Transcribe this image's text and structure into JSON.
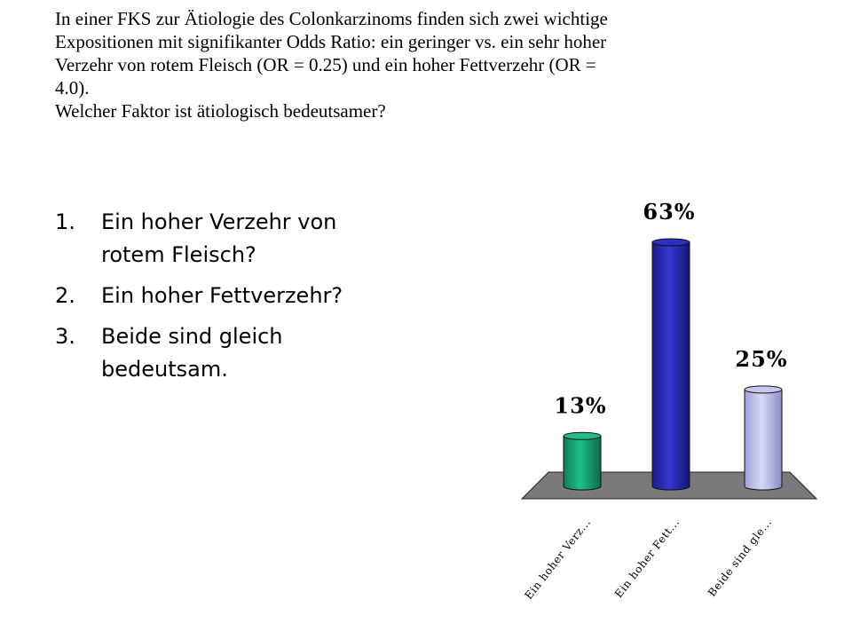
{
  "question": {
    "lines": [
      "In einer FKS zur Ätiologie des Colonkarzinoms finden sich zwei wichtige",
      "Expositionen mit signifikanter Odds Ratio: ein geringer vs. ein sehr hoher",
      "Verzehr von rotem Fleisch (OR = 0.25) und ein hoher Fettverzehr (OR =",
      "4.0).",
      "Welcher Faktor ist ätiologisch bedeutsamer?"
    ]
  },
  "answers": [
    {
      "num": "1.",
      "text": "Ein hoher Verzehr von rotem Fleisch?"
    },
    {
      "num": "2.",
      "text": "Ein hoher Fettverzehr?"
    },
    {
      "num": "3.",
      "text": "Beide sind gleich bedeutsam."
    }
  ],
  "chart_data": {
    "type": "bar",
    "categories": [
      "Ein hoher Verz...",
      "Ein hoher Fett...",
      "Beide sind gle..."
    ],
    "values": [
      13,
      63,
      25
    ],
    "labels": [
      "13%",
      "63%",
      "25%"
    ],
    "ylim": [
      0,
      63
    ],
    "colors": [
      "#1fbf8a",
      "#2b2fc0",
      "#c4c8ef"
    ],
    "title": "",
    "xlabel": "",
    "ylabel": "",
    "grid": false,
    "legend": "none"
  }
}
